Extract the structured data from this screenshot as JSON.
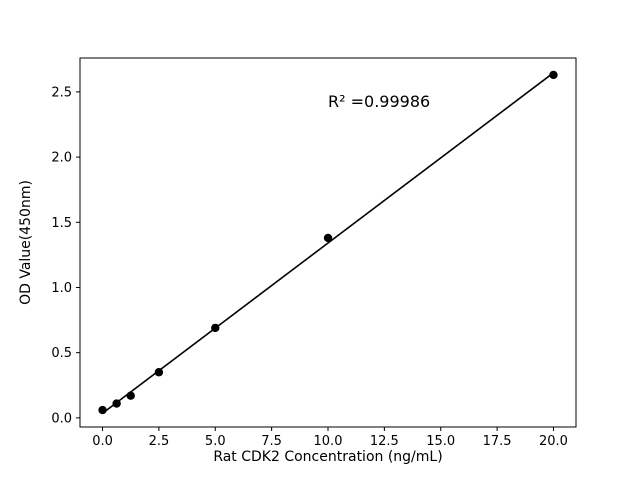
{
  "chart_data": {
    "type": "scatter",
    "title": "",
    "xlabel": "Rat CDK2 Concentration (ng/mL)",
    "ylabel": "OD Value(450nm)",
    "annotation": "R² =0.99986",
    "x": [
      0,
      0.625,
      1.25,
      2.5,
      5,
      10,
      20
    ],
    "y": [
      0.06,
      0.11,
      0.17,
      0.35,
      0.69,
      1.38,
      2.63
    ],
    "fit_line": true,
    "xlim": [
      -1,
      21
    ],
    "ylim": [
      -0.07,
      2.76
    ],
    "xticks": [
      0.0,
      2.5,
      5.0,
      7.5,
      10.0,
      12.5,
      15.0,
      17.5,
      20.0
    ],
    "yticks": [
      0.0,
      0.5,
      1.0,
      1.5,
      2.0,
      2.5
    ],
    "grid": false,
    "legend": null,
    "line_color": "#000000",
    "point_color": "#000000",
    "background_color": "#ffffff",
    "annotation_pos": {
      "x": 10.0,
      "y": 2.38
    }
  }
}
